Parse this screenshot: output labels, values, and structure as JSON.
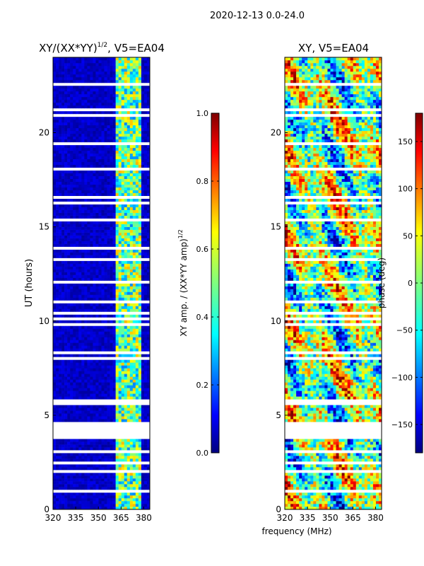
{
  "suptitle": "2020-12-13 0.0-24.0",
  "xlabel_shared": "frequency (MHz)",
  "colors": {
    "white_gap": "#ffffff",
    "amp_background": "#00007f",
    "jet_stops": [
      "#00007f",
      "#0000ff",
      "#007fff",
      "#00ffff",
      "#7fff7f",
      "#ffff00",
      "#ff7f00",
      "#ff0000",
      "#7f0000"
    ]
  },
  "chart_data": [
    {
      "type": "heatmap",
      "title_main": "XY/(XX*YY)",
      "title_sup": "1/2",
      "title_rest": ", V5=EA04",
      "xlabel": "",
      "ylabel": "UT (hours)",
      "xlim": [
        320,
        384
      ],
      "ylim": [
        0,
        24
      ],
      "xticks": [
        "320",
        "335",
        "350",
        "365",
        "380"
      ],
      "xtick_values": [
        320,
        335,
        350,
        365,
        380
      ],
      "yticks": [
        "0",
        "5",
        "10",
        "15",
        "20"
      ],
      "ytick_values": [
        0,
        5,
        10,
        15,
        20
      ],
      "colorbar": {
        "label_main": "XY amp. / (XX*YY amp)",
        "label_sup": "1/2",
        "range": [
          0.0,
          1.0
        ],
        "ticks": [
          "0.0",
          "0.2",
          "0.4",
          "0.6",
          "0.8",
          "1.0"
        ],
        "tick_values": [
          0.0,
          0.2,
          0.4,
          0.6,
          0.8,
          1.0
        ]
      },
      "bright_band_mhz": [
        362,
        378
      ],
      "gap_hours": [
        [
          3.7,
          4.7
        ]
      ]
    },
    {
      "type": "heatmap",
      "title_main": "XY, V5=EA04",
      "xlabel": "frequency (MHz)",
      "ylabel": "",
      "xlim": [
        320,
        384
      ],
      "ylim": [
        0,
        24
      ],
      "xticks": [
        "320",
        "335",
        "350",
        "365",
        "380"
      ],
      "xtick_values": [
        320,
        335,
        350,
        365,
        380
      ],
      "yticks": [
        "0",
        "5",
        "10",
        "15",
        "20"
      ],
      "ytick_values": [
        0,
        5,
        10,
        15,
        20
      ],
      "colorbar": {
        "label_main": "phase (deg)",
        "range": [
          -180,
          180
        ],
        "ticks": [
          "−150",
          "−100",
          "−50",
          "0",
          "50",
          "100",
          "150"
        ],
        "tick_values": [
          -150,
          -100,
          -50,
          0,
          50,
          100,
          150
        ]
      },
      "gap_hours": [
        [
          3.7,
          4.7
        ]
      ]
    }
  ]
}
